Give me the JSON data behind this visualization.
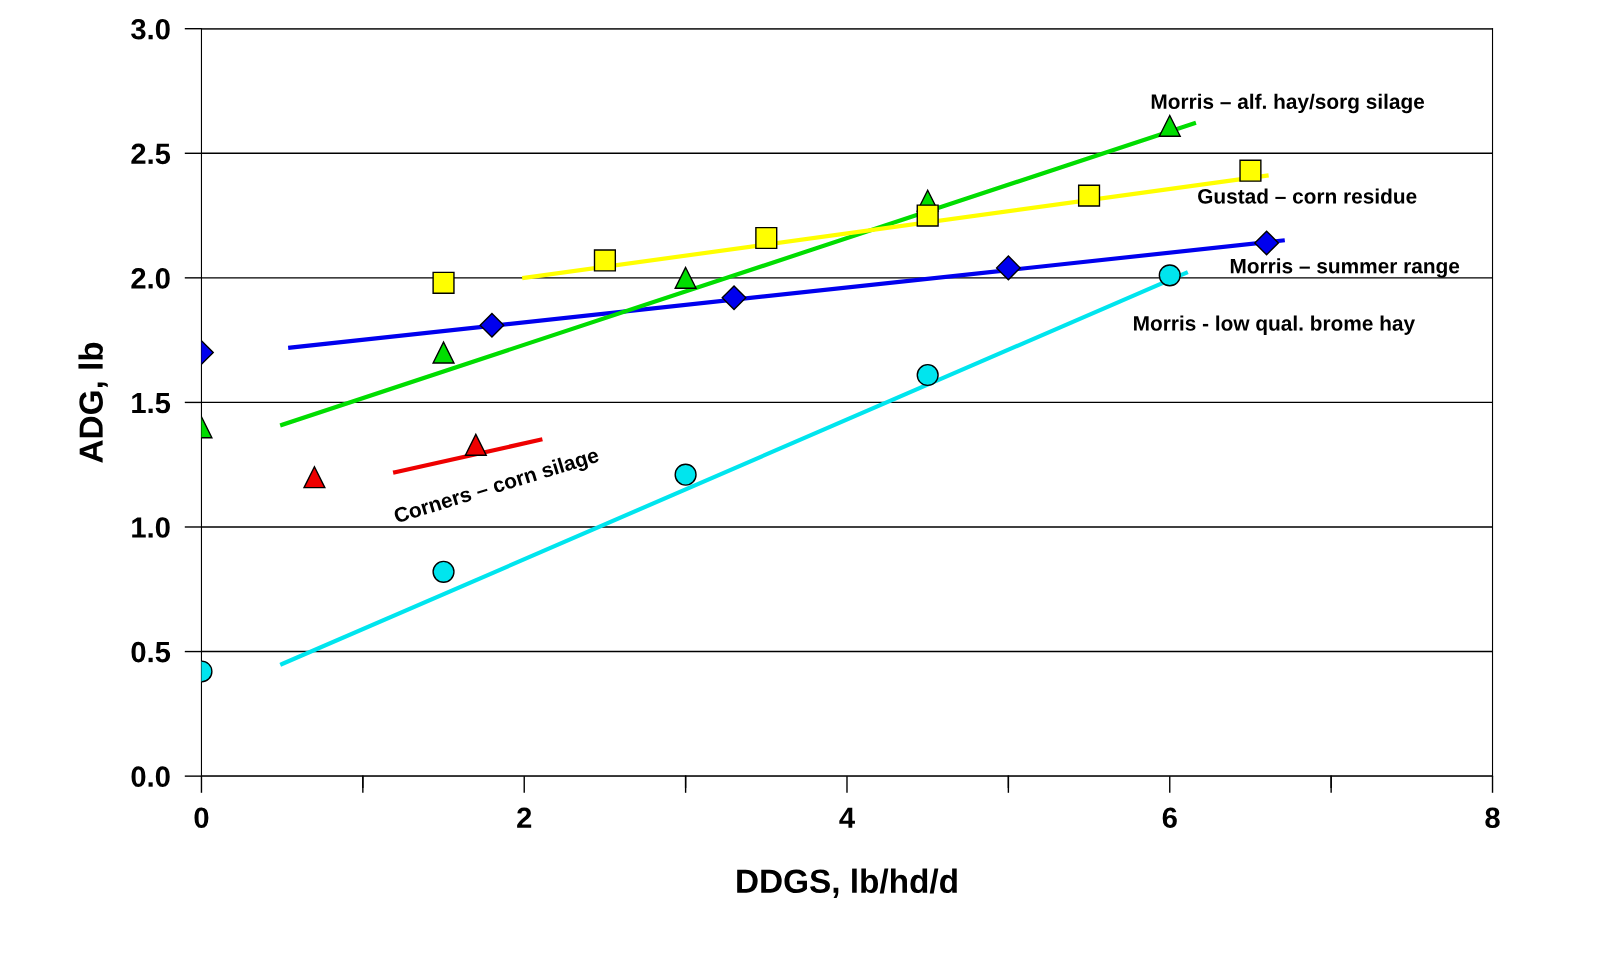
{
  "chart_data": {
    "type": "scatter",
    "xlabel": "DDGS, lb/hd/d",
    "ylabel": "ADG, lb",
    "xlim": [
      0,
      8
    ],
    "xticks": [
      0,
      {
        "value": 1,
        "label": null
      },
      2,
      {
        "value": 3,
        "label": null
      },
      4,
      {
        "value": 5,
        "label": null
      },
      6,
      {
        "value": 7,
        "label": null
      },
      8
    ],
    "ylim": [
      0,
      3.0
    ],
    "yticks": [
      {
        "value": 0,
        "label": "0.0"
      },
      0.5,
      {
        "value": 1,
        "label": "1.0"
      },
      1.5,
      {
        "value": 2,
        "label": "2.0"
      },
      2.5,
      {
        "value": 3,
        "label": "3.0"
      }
    ],
    "grid": "y",
    "legend": false,
    "series": [
      {
        "marker": "circle",
        "color": "#00e5ee",
        "x": [
          0,
          1.5,
          3,
          4.5,
          6
        ],
        "values": [
          0.42,
          0.82,
          1.21,
          1.61,
          2.01
        ]
      },
      {
        "type": "line",
        "name": "Morris - low qual. brome hay",
        "marker": "none",
        "color": "#00e5ee",
        "x": [
          0.5,
          6.1
        ],
        "values": [
          0.45,
          2.02
        ]
      },
      {
        "marker": "diamond",
        "color": "#0000ee",
        "x": [
          0,
          1.8,
          3.3,
          5,
          6.6
        ],
        "values": [
          1.7,
          1.81,
          1.92,
          2.04,
          2.14
        ]
      },
      {
        "type": "line",
        "name": "Morris – summer range",
        "marker": "none",
        "color": "#0000ee",
        "x": [
          0.55,
          6.7
        ],
        "values": [
          1.72,
          2.15
        ]
      },
      {
        "marker": "triangle",
        "color": "#00dd00",
        "x": [
          0,
          1.5,
          3,
          4.5,
          6
        ],
        "values": [
          1.4,
          1.7,
          2.0,
          2.31,
          2.61
        ]
      },
      {
        "type": "line",
        "name": "Morris – alf. hay/sorg silage",
        "marker": "none",
        "color": "#00dd00",
        "x": [
          0.5,
          6.15
        ],
        "values": [
          1.41,
          2.62
        ]
      },
      {
        "marker": "square",
        "color": "#ffff00",
        "x": [
          1.5,
          2.5,
          3.5,
          4.5,
          5.5,
          6.5
        ],
        "values": [
          1.98,
          2.07,
          2.16,
          2.25,
          2.33,
          2.43
        ]
      },
      {
        "type": "line",
        "name": "Gustad – corn residue",
        "marker": "none",
        "color": "#ffff00",
        "x": [
          2,
          6.6
        ],
        "values": [
          2.0,
          2.41
        ]
      },
      {
        "marker": "triangle",
        "color": "#ee0000",
        "x": [
          0.7,
          1.7
        ],
        "values": [
          1.2,
          1.33
        ]
      },
      {
        "type": "line",
        "name": "Corners – corn silage",
        "marker": "none",
        "color": "#ee0000",
        "x": [
          1.2,
          2.1
        ],
        "values": [
          1.22,
          1.35
        ]
      }
    ]
  }
}
